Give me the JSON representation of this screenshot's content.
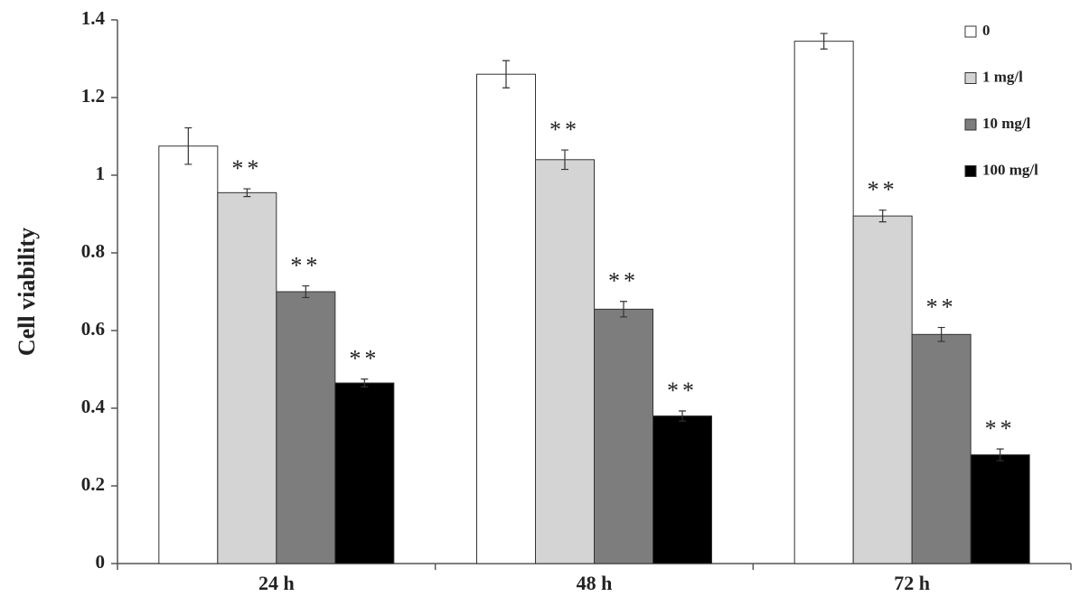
{
  "chart_data": {
    "type": "bar",
    "y_label": "Cell viability",
    "categories": [
      "24 h",
      "48 h",
      "72 h"
    ],
    "ylim": [
      0,
      1.4
    ],
    "yticks": [
      0,
      0.2,
      0.4,
      0.6,
      0.8,
      1,
      1.2,
      1.4
    ],
    "series": [
      {
        "name": "0",
        "color": "#ffffff",
        "values": [
          1.075,
          1.26,
          1.345
        ],
        "errors": [
          0.047,
          0.035,
          0.02
        ]
      },
      {
        "name": "1 mg/l",
        "color": "#d4d4d4",
        "values": [
          0.955,
          1.04,
          0.895
        ],
        "errors": [
          0.01,
          0.025,
          0.015
        ],
        "significance": [
          "**",
          "**",
          "**"
        ]
      },
      {
        "name": "10 mg/l",
        "color": "#7d7d7d",
        "values": [
          0.7,
          0.655,
          0.59
        ],
        "errors": [
          0.015,
          0.02,
          0.018
        ],
        "significance": [
          "**",
          "**",
          "**"
        ]
      },
      {
        "name": "100 mg/l",
        "color": "#000000",
        "values": [
          0.465,
          0.38,
          0.28
        ],
        "errors": [
          0.01,
          0.013,
          0.015
        ],
        "significance": [
          "**",
          "**",
          "**"
        ]
      }
    ]
  }
}
